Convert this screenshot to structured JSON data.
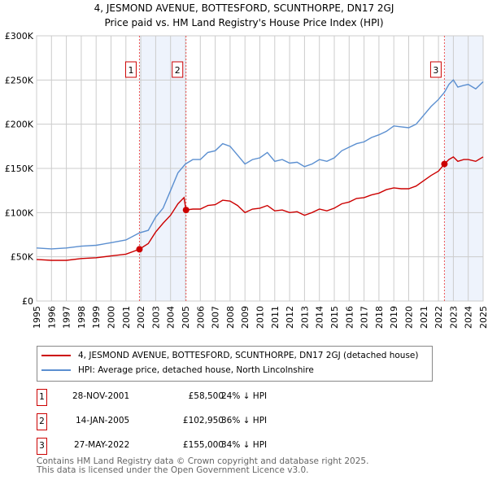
{
  "title": "4, JESMOND AVENUE, BOTTESFORD, SCUNTHORPE, DN17 2GJ",
  "subtitle": "Price paid vs. HM Land Registry's House Price Index (HPI)",
  "chart_data": {
    "type": "line",
    "ylim": [
      0,
      300000
    ],
    "xlim": [
      1995,
      2025
    ],
    "yticks": [
      {
        "v": 0,
        "label": "£0"
      },
      {
        "v": 50000,
        "label": "£50K"
      },
      {
        "v": 100000,
        "label": "£100K"
      },
      {
        "v": 150000,
        "label": "£150K"
      },
      {
        "v": 200000,
        "label": "£200K"
      },
      {
        "v": 250000,
        "label": "£250K"
      },
      {
        "v": 300000,
        "label": "£300K"
      }
    ],
    "xticks": [
      "1995",
      "1996",
      "1997",
      "1998",
      "1999",
      "2000",
      "2001",
      "2002",
      "2003",
      "2004",
      "2005",
      "2006",
      "2007",
      "2008",
      "2009",
      "2010",
      "2011",
      "2012",
      "2013",
      "2014",
      "2015",
      "2016",
      "2017",
      "2018",
      "2019",
      "2020",
      "2021",
      "2022",
      "2023",
      "2024",
      "2025"
    ],
    "grid": true,
    "colors": {
      "property": "#cc0000",
      "hpi": "#5b8fd0",
      "shade": "#eef3fc"
    },
    "series": [
      {
        "name": "4, JESMOND AVENUE, BOTTESFORD, SCUNTHORPE, DN17 2GJ (detached house)",
        "key": "property",
        "points": [
          [
            1995,
            47
          ],
          [
            1996,
            46
          ],
          [
            1997,
            46
          ],
          [
            1998,
            48
          ],
          [
            1999,
            49
          ],
          [
            2000,
            51
          ],
          [
            2001,
            53
          ],
          [
            2001.9,
            58.5
          ],
          [
            2002.5,
            65
          ],
          [
            2003,
            78
          ],
          [
            2003.5,
            88
          ],
          [
            2004,
            97
          ],
          [
            2004.5,
            110
          ],
          [
            2004.9,
            117
          ],
          [
            2005.04,
            102.95
          ],
          [
            2005.5,
            104
          ],
          [
            2006,
            104
          ],
          [
            2006.5,
            108
          ],
          [
            2007,
            109
          ],
          [
            2007.5,
            114
          ],
          [
            2008,
            113
          ],
          [
            2008.5,
            108
          ],
          [
            2009,
            100
          ],
          [
            2009.5,
            104
          ],
          [
            2010,
            105
          ],
          [
            2010.5,
            108
          ],
          [
            2011,
            102
          ],
          [
            2011.5,
            103
          ],
          [
            2012,
            100
          ],
          [
            2012.5,
            101
          ],
          [
            2013,
            97
          ],
          [
            2013.5,
            100
          ],
          [
            2014,
            104
          ],
          [
            2014.5,
            102
          ],
          [
            2015,
            105
          ],
          [
            2015.5,
            110
          ],
          [
            2016,
            112
          ],
          [
            2016.5,
            116
          ],
          [
            2017,
            117
          ],
          [
            2017.5,
            120
          ],
          [
            2018,
            122
          ],
          [
            2018.5,
            126
          ],
          [
            2019,
            128
          ],
          [
            2019.5,
            127
          ],
          [
            2020,
            127
          ],
          [
            2020.5,
            130
          ],
          [
            2021,
            136
          ],
          [
            2021.5,
            142
          ],
          [
            2022,
            147
          ],
          [
            2022.4,
            155
          ],
          [
            2022.7,
            160
          ],
          [
            2023,
            163
          ],
          [
            2023.3,
            158
          ],
          [
            2023.7,
            160
          ],
          [
            2024,
            160
          ],
          [
            2024.5,
            158
          ],
          [
            2025,
            163
          ]
        ]
      },
      {
        "name": "HPI: Average price, detached house, North Lincolnshire",
        "key": "hpi",
        "points": [
          [
            1995,
            60
          ],
          [
            1996,
            59
          ],
          [
            1997,
            60
          ],
          [
            1998,
            62
          ],
          [
            1999,
            63
          ],
          [
            2000,
            66
          ],
          [
            2001,
            69
          ],
          [
            2001.9,
            77
          ],
          [
            2002.5,
            80
          ],
          [
            2003,
            95
          ],
          [
            2003.5,
            105
          ],
          [
            2004,
            125
          ],
          [
            2004.5,
            145
          ],
          [
            2005,
            155
          ],
          [
            2005.5,
            160
          ],
          [
            2006,
            160
          ],
          [
            2006.5,
            168
          ],
          [
            2007,
            170
          ],
          [
            2007.5,
            178
          ],
          [
            2008,
            175
          ],
          [
            2008.5,
            165
          ],
          [
            2009,
            155
          ],
          [
            2009.5,
            160
          ],
          [
            2010,
            162
          ],
          [
            2010.5,
            168
          ],
          [
            2011,
            158
          ],
          [
            2011.5,
            160
          ],
          [
            2012,
            156
          ],
          [
            2012.5,
            157
          ],
          [
            2013,
            152
          ],
          [
            2013.5,
            155
          ],
          [
            2014,
            160
          ],
          [
            2014.5,
            158
          ],
          [
            2015,
            162
          ],
          [
            2015.5,
            170
          ],
          [
            2016,
            174
          ],
          [
            2016.5,
            178
          ],
          [
            2017,
            180
          ],
          [
            2017.5,
            185
          ],
          [
            2018,
            188
          ],
          [
            2018.5,
            192
          ],
          [
            2019,
            198
          ],
          [
            2019.5,
            197
          ],
          [
            2020,
            196
          ],
          [
            2020.5,
            200
          ],
          [
            2021,
            210
          ],
          [
            2021.5,
            220
          ],
          [
            2022,
            228
          ],
          [
            2022.4,
            236
          ],
          [
            2022.7,
            245
          ],
          [
            2023,
            250
          ],
          [
            2023.3,
            242
          ],
          [
            2023.7,
            244
          ],
          [
            2024,
            245
          ],
          [
            2024.5,
            240
          ],
          [
            2025,
            248
          ]
        ]
      }
    ],
    "sales": [
      {
        "n": "1",
        "x": 2001.91,
        "y": 58500,
        "date": "28-NOV-2001",
        "price": "£58,500",
        "hpi": "24% ↓ HPI"
      },
      {
        "n": "2",
        "x": 2005.04,
        "y": 102950,
        "date": "14-JAN-2005",
        "price": "£102,950",
        "hpi": "36% ↓ HPI"
      },
      {
        "n": "3",
        "x": 2022.4,
        "y": 155000,
        "date": "27-MAY-2022",
        "price": "£155,000",
        "hpi": "34% ↓ HPI"
      }
    ],
    "shaded": [
      [
        2001.91,
        2005.04
      ],
      [
        2022.4,
        2025
      ]
    ]
  },
  "footer": {
    "line1": "Contains HM Land Registry data © Crown copyright and database right 2025.",
    "line2": "This data is licensed under the Open Government Licence v3.0."
  }
}
